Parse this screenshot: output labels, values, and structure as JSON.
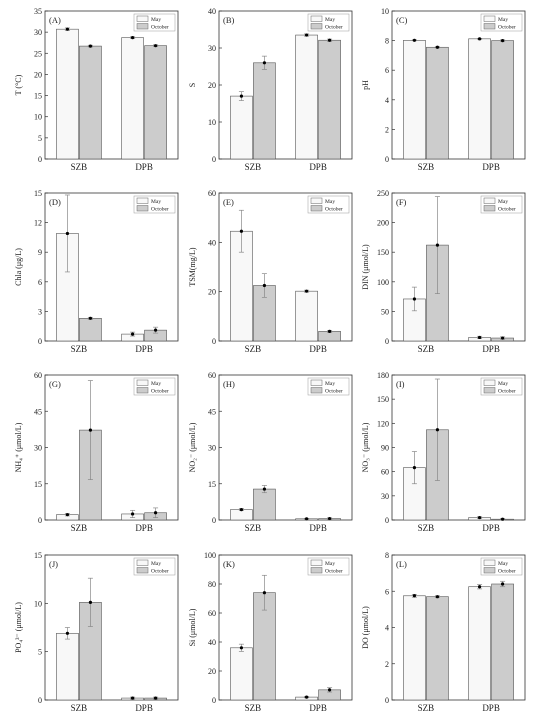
{
  "legend_labels": [
    "May",
    "October"
  ],
  "colors": {
    "may": "#f8f8f8",
    "october": "#cccccc",
    "axis": "#333333"
  },
  "chart_data": [
    {
      "panel": "(A)",
      "type": "bar",
      "categories": [
        "SZB",
        "DPB"
      ],
      "series": [
        {
          "name": "May",
          "values": [
            30.7,
            28.7
          ],
          "errors": [
            0.3,
            0.2
          ]
        },
        {
          "name": "October",
          "values": [
            26.7,
            26.8
          ],
          "errors": [
            0.2,
            0.2
          ]
        }
      ],
      "ylabel": "T (°C)",
      "ylim": [
        0,
        35
      ],
      "yticks": [
        0,
        5,
        10,
        15,
        20,
        25,
        30,
        35
      ],
      "legend": "top-right"
    },
    {
      "panel": "(B)",
      "type": "bar",
      "categories": [
        "SZB",
        "DPB"
      ],
      "series": [
        {
          "name": "May",
          "values": [
            17.0,
            33.5
          ],
          "errors": [
            1.2,
            0.3
          ]
        },
        {
          "name": "October",
          "values": [
            26.0,
            32.1
          ],
          "errors": [
            1.8,
            0.3
          ]
        }
      ],
      "ylabel": "S",
      "ylim": [
        0,
        40
      ],
      "yticks": [
        0,
        10,
        20,
        30,
        40
      ],
      "legend": "top-right"
    },
    {
      "panel": "(C)",
      "type": "bar",
      "categories": [
        "SZB",
        "DPB"
      ],
      "series": [
        {
          "name": "May",
          "values": [
            8.02,
            8.12
          ],
          "errors": [
            0.03,
            0.03
          ]
        },
        {
          "name": "October",
          "values": [
            7.55,
            8.0
          ],
          "errors": [
            0.04,
            0.05
          ]
        }
      ],
      "ylabel": "pH",
      "ylim": [
        0,
        10
      ],
      "yticks": [
        0,
        2,
        4,
        6,
        8,
        10
      ],
      "legend": "top-right"
    },
    {
      "panel": "(D)",
      "type": "bar",
      "categories": [
        "SZB",
        "DPB"
      ],
      "series": [
        {
          "name": "May",
          "values": [
            10.9,
            0.7
          ],
          "errors": [
            3.9,
            0.2
          ]
        },
        {
          "name": "October",
          "values": [
            2.3,
            1.1
          ],
          "errors": [
            0.1,
            0.3
          ]
        }
      ],
      "ylabel": "Chla (μg/L)",
      "ylim": [
        0,
        15
      ],
      "yticks": [
        0,
        3,
        6,
        9,
        12,
        15
      ],
      "legend": "top-right"
    },
    {
      "panel": "(E)",
      "type": "bar",
      "categories": [
        "SZB",
        "DPB"
      ],
      "series": [
        {
          "name": "May",
          "values": [
            44.5,
            20.2
          ],
          "errors": [
            8.5,
            0.4
          ]
        },
        {
          "name": "October",
          "values": [
            22.5,
            3.9
          ],
          "errors": [
            4.8,
            0.4
          ]
        }
      ],
      "ylabel": "TSM(mg/L)",
      "ylim": [
        0,
        60
      ],
      "yticks": [
        0,
        20,
        40,
        60
      ],
      "legend": "top-right"
    },
    {
      "panel": "(F)",
      "type": "bar",
      "categories": [
        "SZB",
        "DPB"
      ],
      "series": [
        {
          "name": "May",
          "values": [
            71,
            6
          ],
          "errors": [
            20,
            2
          ]
        },
        {
          "name": "October",
          "values": [
            162,
            5
          ],
          "errors": [
            82,
            2
          ]
        }
      ],
      "ylabel": "DIN (μmol/L)",
      "ylim": [
        0,
        250
      ],
      "yticks": [
        0,
        50,
        100,
        150,
        200,
        250
      ],
      "legend": "top-right"
    },
    {
      "panel": "(G)",
      "type": "bar",
      "categories": [
        "SZB",
        "DPB"
      ],
      "series": [
        {
          "name": "May",
          "values": [
            2.2,
            2.5
          ],
          "errors": [
            0.5,
            1.5
          ]
        },
        {
          "name": "October",
          "values": [
            37.2,
            3.0
          ],
          "errors": [
            20.5,
            2.0
          ]
        }
      ],
      "ylabel": "NH₄⁺ (μmol/L)",
      "ylim": [
        0,
        60
      ],
      "yticks": [
        0,
        15,
        30,
        45,
        60
      ],
      "legend": "top-right"
    },
    {
      "panel": "(H)",
      "type": "bar",
      "categories": [
        "SZB",
        "DPB"
      ],
      "series": [
        {
          "name": "May",
          "values": [
            4.3,
            0.5
          ],
          "errors": [
            0.4,
            0.2
          ]
        },
        {
          "name": "October",
          "values": [
            12.8,
            0.6
          ],
          "errors": [
            1.5,
            0.3
          ]
        }
      ],
      "ylabel": "NO₂⁻ (μmol/L)",
      "ylim": [
        0,
        60
      ],
      "yticks": [
        0,
        15,
        30,
        45,
        60
      ],
      "legend": "top-right"
    },
    {
      "panel": "(I)",
      "type": "bar",
      "categories": [
        "SZB",
        "DPB"
      ],
      "series": [
        {
          "name": "May",
          "values": [
            65,
            3
          ],
          "errors": [
            20,
            1
          ]
        },
        {
          "name": "October",
          "values": [
            112,
            1
          ],
          "errors": [
            63,
            1
          ]
        }
      ],
      "ylabel": "NO₃⁻ (μmol/L)",
      "ylim": [
        0,
        180
      ],
      "yticks": [
        0,
        30,
        60,
        90,
        120,
        150,
        180
      ],
      "legend": "top-right"
    },
    {
      "panel": "(J)",
      "type": "bar",
      "categories": [
        "SZB",
        "DPB"
      ],
      "series": [
        {
          "name": "May",
          "values": [
            6.9,
            0.2
          ],
          "errors": [
            0.6,
            0.1
          ]
        },
        {
          "name": "October",
          "values": [
            10.1,
            0.2
          ],
          "errors": [
            2.5,
            0.1
          ]
        }
      ],
      "ylabel": "PO₄³⁻ (μmol/L)",
      "ylim": [
        0,
        15
      ],
      "yticks": [
        0,
        5,
        10,
        15
      ],
      "legend": "top-right"
    },
    {
      "panel": "(K)",
      "type": "bar",
      "categories": [
        "SZB",
        "DPB"
      ],
      "series": [
        {
          "name": "May",
          "values": [
            36,
            2
          ],
          "errors": [
            2.5,
            0.5
          ]
        },
        {
          "name": "October",
          "values": [
            74,
            7
          ],
          "errors": [
            12,
            1.5
          ]
        }
      ],
      "ylabel": "Si (μmol/L)",
      "ylim": [
        0,
        100
      ],
      "yticks": [
        0,
        20,
        40,
        60,
        80,
        100
      ],
      "legend": "top-right"
    },
    {
      "panel": "(L)",
      "type": "bar",
      "categories": [
        "SZB",
        "DPB"
      ],
      "series": [
        {
          "name": "May",
          "values": [
            5.75,
            6.25
          ],
          "errors": [
            0.08,
            0.12
          ]
        },
        {
          "name": "October",
          "values": [
            5.7,
            6.4
          ],
          "errors": [
            0.05,
            0.15
          ]
        }
      ],
      "ylabel": "DO (μmol/L)",
      "ylim": [
        0,
        8
      ],
      "yticks": [
        0,
        2,
        4,
        6,
        8
      ],
      "legend": "top-right"
    }
  ]
}
